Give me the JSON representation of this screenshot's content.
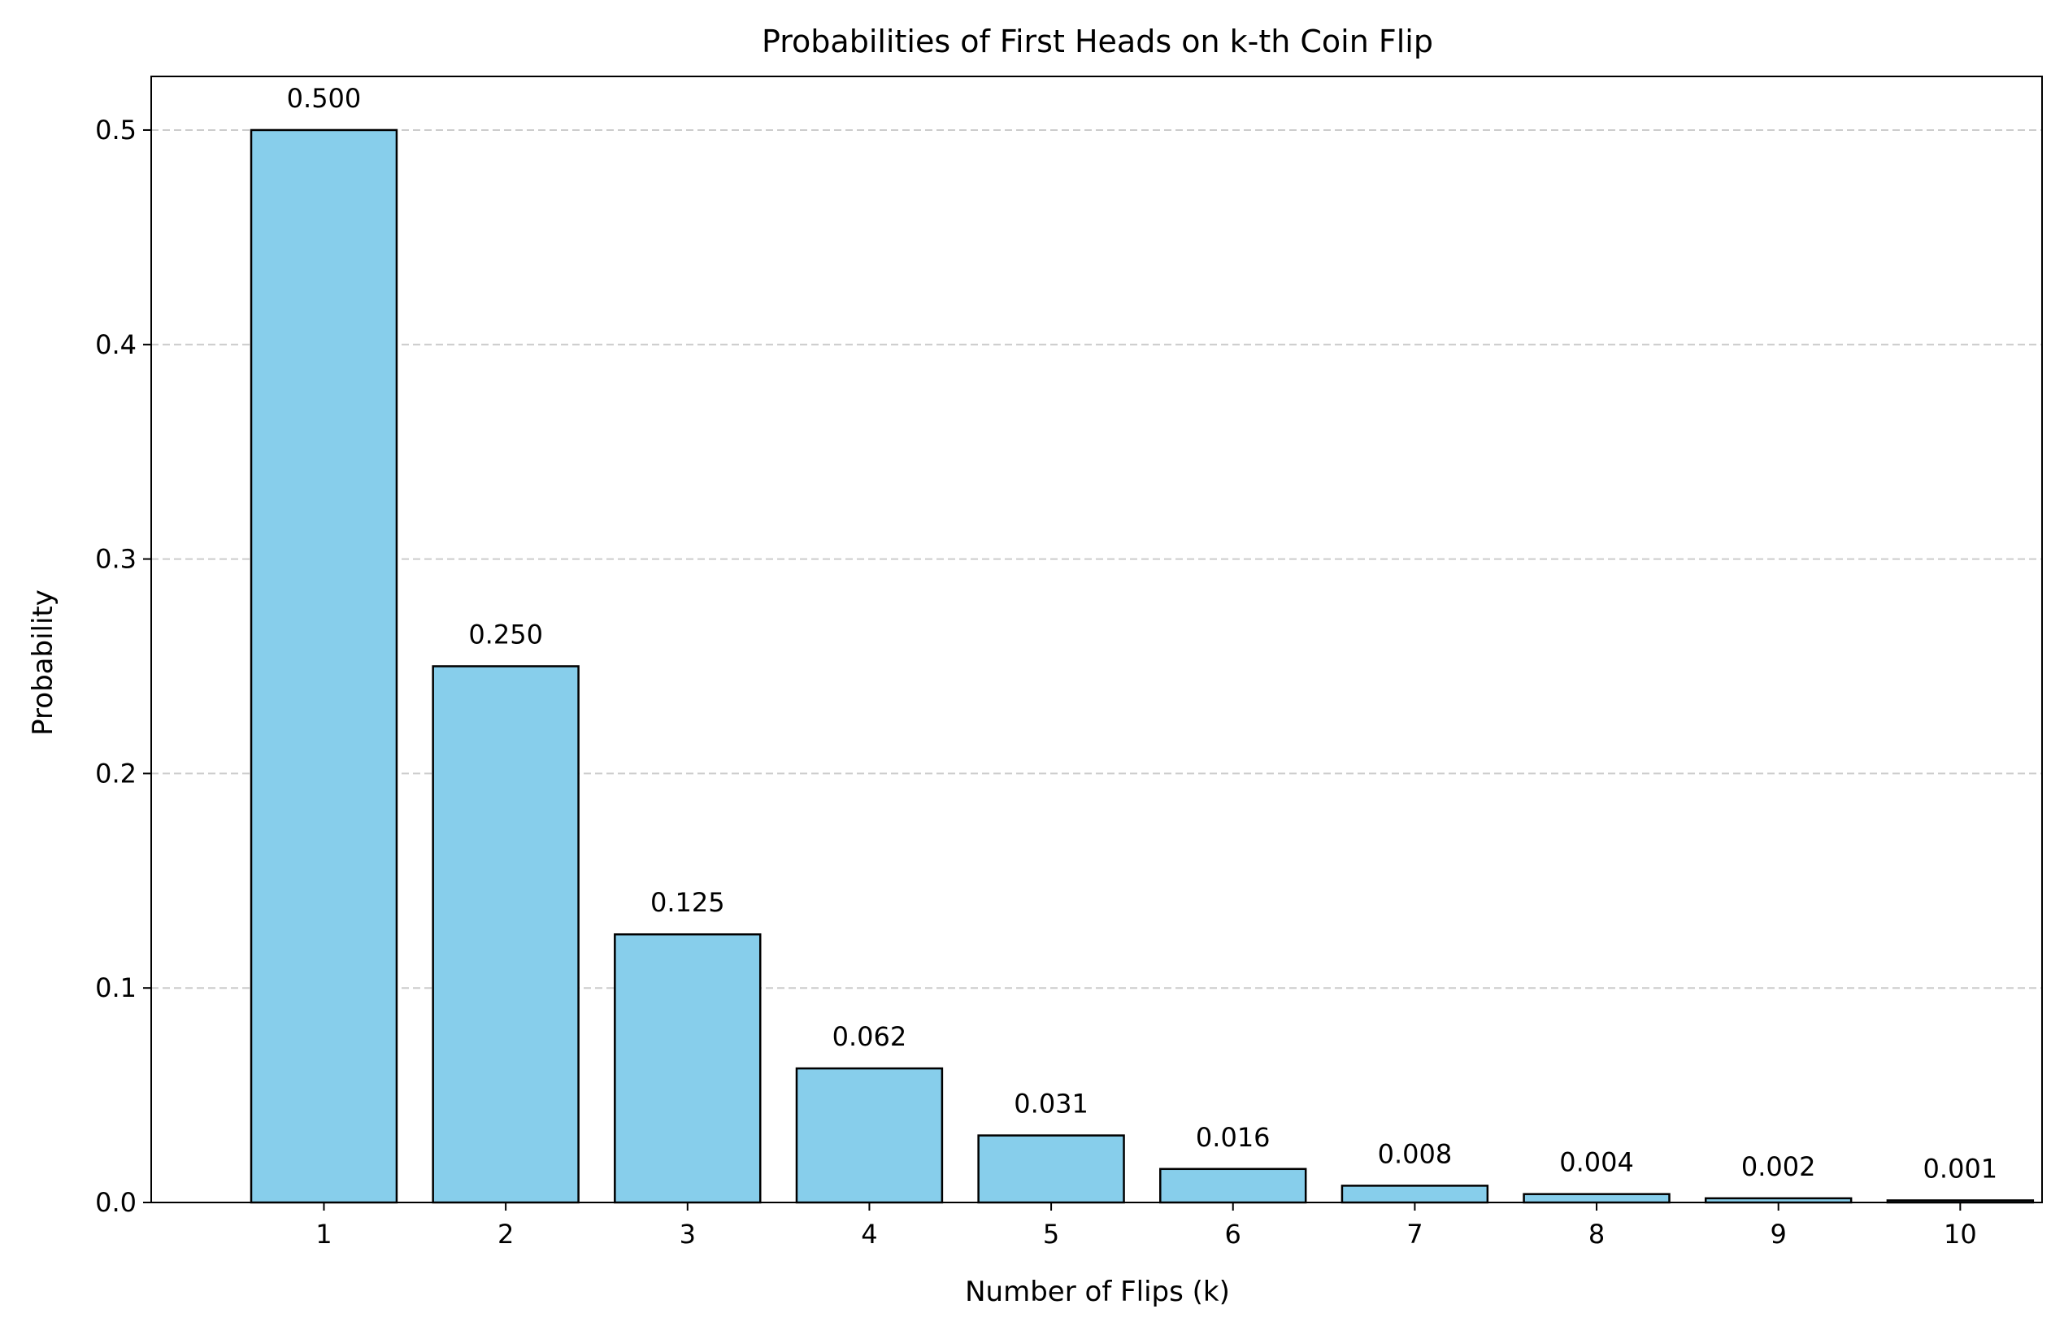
{
  "chart_data": {
    "type": "bar",
    "title": "Probabilities of First Heads on k-th Coin Flip",
    "xlabel": "Number of Flips (k)",
    "ylabel": "Probability",
    "categories": [
      "1",
      "2",
      "3",
      "4",
      "5",
      "6",
      "7",
      "8",
      "9",
      "10"
    ],
    "values": [
      0.5,
      0.25,
      0.125,
      0.0625,
      0.03125,
      0.015625,
      0.0078125,
      0.00390625,
      0.001953125,
      0.0009765625
    ],
    "data_labels": [
      "0.500",
      "0.250",
      "0.125",
      "0.062",
      "0.031",
      "0.016",
      "0.008",
      "0.004",
      "0.002",
      "0.001"
    ],
    "ylim": [
      0,
      0.525
    ],
    "yticks": [
      0.0,
      0.1,
      0.2,
      0.3,
      0.4,
      0.5
    ],
    "ytick_labels": [
      "0.0",
      "0.1",
      "0.2",
      "0.3",
      "0.4",
      "0.5"
    ],
    "grid": "y-dashed",
    "legend": "none",
    "colors": {
      "bar_fill": "#87ceeb",
      "bar_edge": "#000000",
      "grid": "#cccccc",
      "axis": "#000000"
    }
  }
}
